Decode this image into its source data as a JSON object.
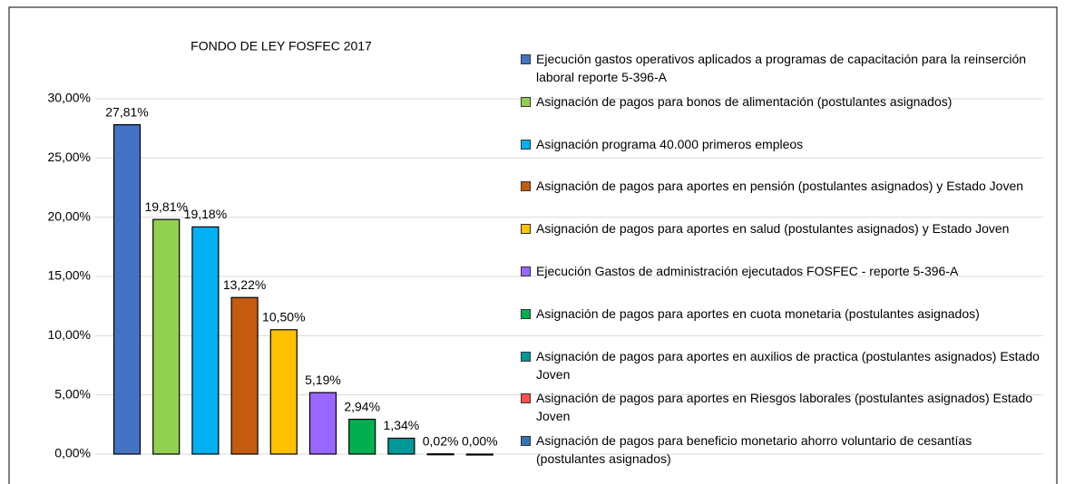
{
  "chart_data": {
    "type": "bar",
    "title": "FONDO DE LEY FOSFEC 2017",
    "categories": [
      "Ejecución gastos operativos aplicados a programas de capacitación para la reinserción laboral reporte 5-396-A",
      "Asignación de pagos para bonos de alimentación (postulantes asignados)",
      "Asignación programa 40.000 primeros empleos",
      "Asignación de pagos para aportes en pensión (postulantes asignados) y Estado Joven",
      "Asignación de pagos para aportes en salud (postulantes asignados) y Estado Joven",
      "Ejecución Gastos de administración ejecutados FOSFEC - reporte 5-396-A",
      "Asignación de pagos para aportes en cuota  monetaria (postulantes asignados)",
      "Asignación de pagos para aportes en auxilios de practica (postulantes asignados) Estado Joven",
      "Asignación de pagos para aportes en Riesgos laborales (postulantes asignados) Estado Joven",
      "Asignación de pagos para beneficio monetario ahorro voluntario de cesantías (postulantes asignados)"
    ],
    "values": [
      27.81,
      19.81,
      19.18,
      13.22,
      10.5,
      5.19,
      2.94,
      1.34,
      0.02,
      0.0
    ],
    "value_labels": [
      "27,81%",
      "19,81%",
      "19,18%",
      "13,22%",
      "10,50%",
      "5,19%",
      "2,94%",
      "1,34%",
      "0,02%",
      "0,00%"
    ],
    "colors": [
      "#4472c4",
      "#92d050",
      "#00b0f0",
      "#c55a11",
      "#ffc000",
      "#9966ff",
      "#00b050",
      "#009999",
      "#ff5050",
      "#2e75b6"
    ],
    "ylim": [
      0,
      30
    ],
    "yticks": [
      {
        "value": 0,
        "label": "0,00%"
      },
      {
        "value": 5,
        "label": "5,00%"
      },
      {
        "value": 10,
        "label": "10,00%"
      },
      {
        "value": 15,
        "label": "15,00%"
      },
      {
        "value": 20,
        "label": "20,00%"
      },
      {
        "value": 25,
        "label": "25,00%"
      },
      {
        "value": 30,
        "label": "30,00%"
      }
    ],
    "grid": true
  }
}
